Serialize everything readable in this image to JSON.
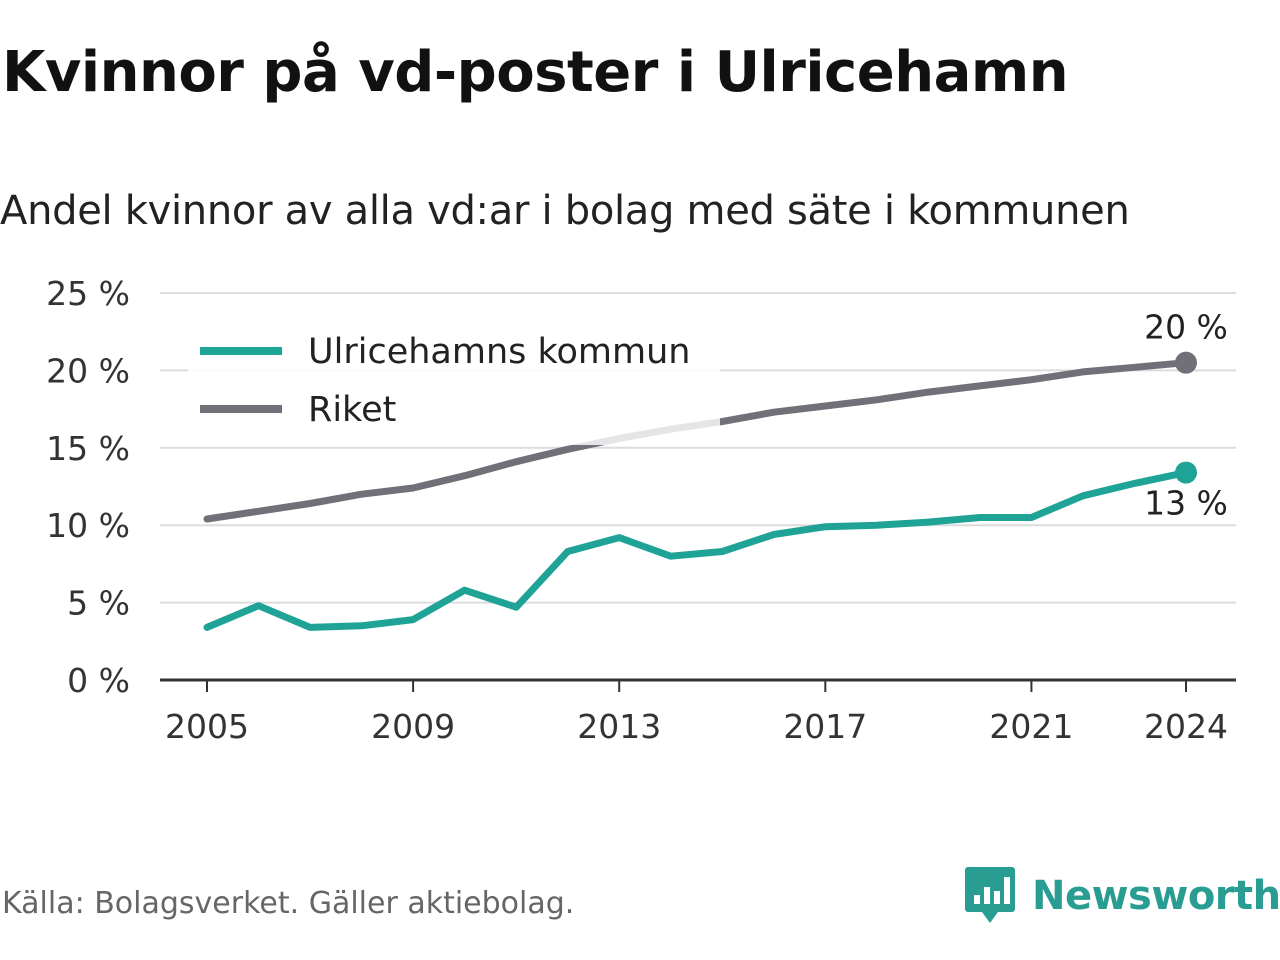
{
  "title": "Kvinnor på vd-poster i Ulricehamn",
  "subtitle": "Andel kvinnor av alla vd:ar i bolag med säte i kommunen",
  "source": "Källa: Bolagsverket. Gäller aktiebolag.",
  "brand": {
    "name": "Newsworthy",
    "icon": "newsworthy-logo-icon",
    "color": "#2a9d92"
  },
  "chart_data": {
    "type": "line",
    "x": [
      2005,
      2006,
      2007,
      2008,
      2009,
      2010,
      2011,
      2012,
      2013,
      2014,
      2015,
      2016,
      2017,
      2018,
      2019,
      2020,
      2021,
      2022,
      2023,
      2024
    ],
    "xticks": [
      {
        "value": 2005,
        "label": "2005"
      },
      {
        "value": 2009,
        "label": "2009"
      },
      {
        "value": 2013,
        "label": "2013"
      },
      {
        "value": 2017,
        "label": "2017"
      },
      {
        "value": 2021,
        "label": "2021"
      },
      {
        "value": 2024,
        "label": "2024"
      }
    ],
    "yticks": [
      {
        "value": 0,
        "label": "0 %"
      },
      {
        "value": 5,
        "label": "5 %"
      },
      {
        "value": 10,
        "label": "10 %"
      },
      {
        "value": 15,
        "label": "15 %"
      },
      {
        "value": 20,
        "label": "20 %"
      },
      {
        "value": 25,
        "label": "25 %"
      }
    ],
    "ylim": [
      0,
      25
    ],
    "xlim": [
      2005,
      2024
    ],
    "grid": true,
    "legend_position": "top-left",
    "series": [
      {
        "name": "Ulricehamns kommun",
        "color": "#1fa397",
        "values": [
          3.4,
          4.8,
          3.4,
          3.5,
          3.9,
          5.8,
          4.7,
          8.3,
          9.2,
          8.0,
          8.3,
          9.4,
          9.9,
          10.0,
          10.2,
          10.5,
          10.5,
          11.9,
          12.7,
          13.4
        ],
        "end_label": "13 %"
      },
      {
        "name": "Riket",
        "color": "#707078",
        "values": [
          10.4,
          10.9,
          11.4,
          12.0,
          12.4,
          13.2,
          14.1,
          14.9,
          15.6,
          16.2,
          16.7,
          17.3,
          17.7,
          18.1,
          18.6,
          19.0,
          19.4,
          19.9,
          20.2,
          20.5
        ],
        "end_label": "20 %"
      }
    ]
  }
}
